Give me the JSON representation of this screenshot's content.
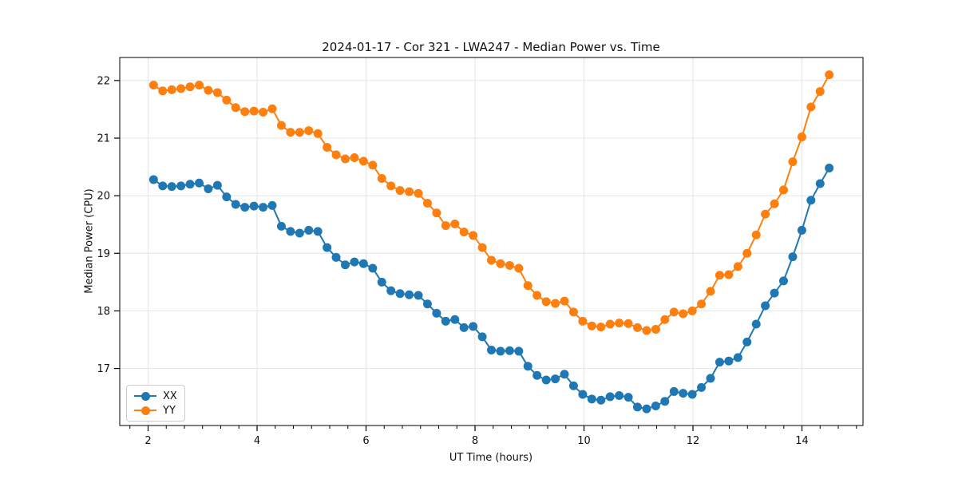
{
  "chart_data": {
    "type": "line",
    "title": "2024-01-17 - Cor 321 - LWA247 - Median Power vs. Time",
    "xlabel": "UT Time (hours)",
    "ylabel": "Median Power (CPU)",
    "grid": true,
    "legend_position": "lower-left",
    "marker": "circle",
    "xlim": [
      1.48,
      15.12
    ],
    "ylim": [
      16.01,
      22.4
    ],
    "x_ticks": [
      2,
      4,
      6,
      8,
      10,
      12,
      14
    ],
    "y_ticks": [
      17,
      18,
      19,
      20,
      21,
      22
    ],
    "x_minor_step": 0.33333,
    "grid_color": "#e4e4e4",
    "x": [
      2.1,
      2.268,
      2.435,
      2.603,
      2.77,
      2.938,
      3.105,
      3.273,
      3.441,
      3.608,
      3.776,
      3.943,
      4.111,
      4.278,
      4.446,
      4.614,
      4.781,
      4.949,
      5.116,
      5.284,
      5.451,
      5.619,
      5.787,
      5.954,
      6.122,
      6.289,
      6.457,
      6.624,
      6.792,
      6.96,
      7.127,
      7.295,
      7.462,
      7.63,
      7.797,
      7.965,
      8.133,
      8.3,
      8.468,
      8.635,
      8.803,
      8.97,
      9.138,
      9.306,
      9.473,
      9.641,
      9.808,
      9.976,
      10.143,
      10.311,
      10.479,
      10.646,
      10.814,
      10.981,
      11.149,
      11.316,
      11.484,
      11.652,
      11.819,
      11.987,
      12.154,
      12.322,
      12.489,
      12.657,
      12.825,
      12.992,
      13.16,
      13.327,
      13.495,
      13.662,
      13.83,
      13.998,
      14.165,
      14.333,
      14.5
    ],
    "series": [
      {
        "name": "XX",
        "color": "#1f77b4",
        "values": [
          20.28,
          20.17,
          20.16,
          20.17,
          20.2,
          20.22,
          20.12,
          20.18,
          19.98,
          19.85,
          19.8,
          19.82,
          19.8,
          19.83,
          19.47,
          19.38,
          19.35,
          19.4,
          19.38,
          19.1,
          18.93,
          18.8,
          18.85,
          18.82,
          18.74,
          18.5,
          18.35,
          18.3,
          18.28,
          18.27,
          18.12,
          17.96,
          17.82,
          17.85,
          17.71,
          17.73,
          17.55,
          17.32,
          17.3,
          17.31,
          17.3,
          17.04,
          16.88,
          16.8,
          16.82,
          16.9,
          16.7,
          16.55,
          16.47,
          16.45,
          16.51,
          16.53,
          16.5,
          16.33,
          16.3,
          16.35,
          16.43,
          16.6,
          16.57,
          16.55,
          16.67,
          16.83,
          17.11,
          17.13,
          17.19,
          17.46,
          17.77,
          18.09,
          18.31,
          18.52,
          18.94,
          19.4,
          19.92,
          20.21,
          20.48
        ]
      },
      {
        "name": "YY",
        "color": "#ff7f0e",
        "values": [
          21.92,
          21.82,
          21.84,
          21.86,
          21.89,
          21.92,
          21.83,
          21.79,
          21.66,
          21.53,
          21.46,
          21.47,
          21.45,
          21.51,
          21.22,
          21.1,
          21.1,
          21.13,
          21.08,
          20.84,
          20.71,
          20.64,
          20.66,
          20.6,
          20.53,
          20.3,
          20.17,
          20.09,
          20.07,
          20.04,
          19.87,
          19.7,
          19.48,
          19.51,
          19.37,
          19.31,
          19.1,
          18.88,
          18.82,
          18.79,
          18.74,
          18.44,
          18.27,
          18.16,
          18.13,
          18.17,
          17.98,
          17.82,
          17.74,
          17.72,
          17.77,
          17.79,
          17.78,
          17.71,
          17.66,
          17.68,
          17.85,
          17.98,
          17.95,
          18.0,
          18.12,
          18.34,
          18.62,
          18.63,
          18.77,
          19.0,
          19.32,
          19.68,
          19.86,
          20.1,
          20.59,
          21.02,
          21.54,
          21.81,
          22.1
        ]
      }
    ]
  }
}
